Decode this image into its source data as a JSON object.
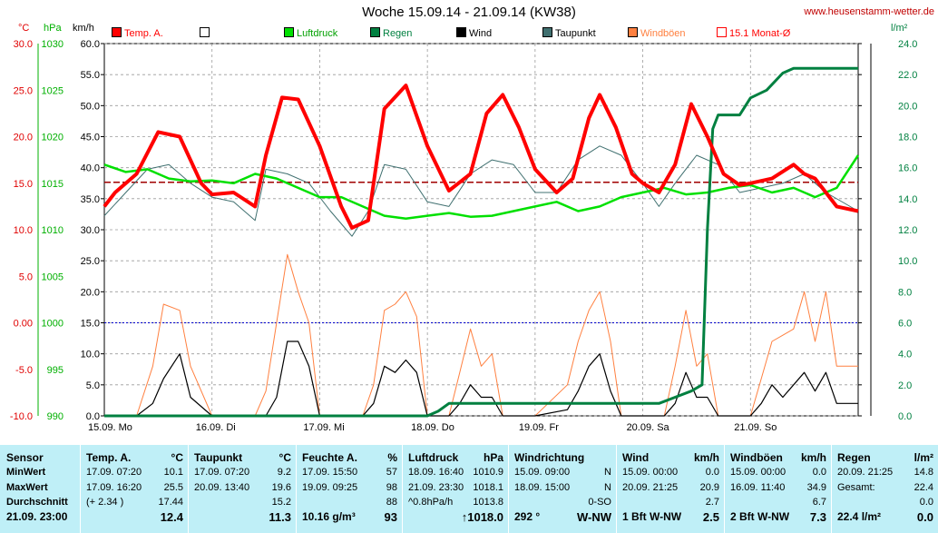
{
  "title": "Woche 15.09.14 - 21.09.14 (KW38)",
  "site": "www.heusenstamm-wetter.de",
  "units": {
    "temp": "°C",
    "pressure": "hPa",
    "wind": "km/h",
    "rain": "l/m²"
  },
  "colors": {
    "temp": "#ff0000",
    "pressure": "#00e000",
    "rain": "#008040",
    "wind": "#000000",
    "dew": "#407070",
    "gust": "#ff8040",
    "monat": "#ff0000",
    "zero": "#0000cc"
  },
  "legend": [
    {
      "label": "Temp. A.",
      "color": "#ff0000",
      "fill": true
    },
    {
      "label": "",
      "color": "#ffffff",
      "fill": false
    },
    {
      "label": "Luftdruck",
      "color": "#00e000",
      "fill": true
    },
    {
      "label": "Regen",
      "color": "#008040",
      "fill": true
    },
    {
      "label": "Wind",
      "color": "#000000",
      "fill": true
    },
    {
      "label": "Taupunkt",
      "color": "#407070",
      "fill": true
    },
    {
      "label": "Windböen",
      "color": "#ff8040",
      "fill": true
    },
    {
      "label": "15.1 Monat-Ø",
      "color": "#ff0000",
      "fill": false
    }
  ],
  "chart_data": {
    "type": "line",
    "title": "Woche 15.09.14 - 21.09.14 (KW38)",
    "x_labels": [
      "15.09.  Mo",
      "16.09.  Di",
      "17.09.  Mi",
      "18.09.  Do",
      "19.09.  Fr",
      "20.09.  Sa",
      "21.09.  So"
    ],
    "axes": {
      "temp": {
        "unit": "°C",
        "ylim": [
          -10,
          30
        ],
        "ticks": [
          "30.0",
          "25.0",
          "20.0",
          "15.0",
          "10.0",
          "5.0",
          "0.00",
          "-5.0",
          "-10.0"
        ]
      },
      "pressure": {
        "unit": "hPa",
        "ylim": [
          990,
          1030
        ],
        "ticks": [
          "1030",
          "1025",
          "1020",
          "1015",
          "1010",
          "1005",
          "1000",
          "995",
          "990"
        ]
      },
      "wind": {
        "unit": "km/h",
        "ylim": [
          0,
          60
        ],
        "ticks": [
          "60.0",
          "55.0",
          "50.0",
          "45.0",
          "40.0",
          "35.0",
          "30.0",
          "25.0",
          "20.0",
          "15.0",
          "10.0",
          "5.0",
          "0.0"
        ]
      },
      "rain": {
        "unit": "l/m²",
        "ylim": [
          0,
          24
        ],
        "ticks": [
          "24.0",
          "22.0",
          "20.0",
          "18.0",
          "16.0",
          "14.0",
          "12.0",
          "10.0",
          "8.0",
          "6.0",
          "4.0",
          "2.0",
          "0.0"
        ]
      }
    },
    "grid": true,
    "series": [
      {
        "name": "Temp. A.",
        "axis": "temp",
        "x": [
          0,
          0.1,
          0.3,
          0.5,
          0.7,
          0.9,
          1.0,
          1.2,
          1.4,
          1.5,
          1.65,
          1.8,
          2.0,
          2.2,
          2.3,
          2.45,
          2.6,
          2.8,
          3.0,
          3.2,
          3.4,
          3.55,
          3.7,
          3.85,
          4.0,
          4.2,
          4.35,
          4.5,
          4.6,
          4.75,
          4.9,
          5.0,
          5.15,
          5.3,
          5.45,
          5.6,
          5.75,
          5.9,
          6.0,
          6.2,
          6.4,
          6.5,
          6.6,
          6.8,
          7.0
        ],
        "values": [
          12.5,
          14.0,
          16.0,
          20.5,
          20.0,
          15.0,
          13.8,
          14.0,
          12.5,
          18.0,
          24.2,
          24.0,
          19.0,
          12.5,
          10.2,
          11.0,
          23.0,
          25.5,
          19.0,
          14.2,
          16.0,
          22.5,
          24.5,
          21.0,
          16.5,
          14.0,
          15.5,
          22.0,
          24.5,
          21.0,
          16.0,
          15.0,
          14.0,
          17.0,
          23.5,
          20.0,
          16.0,
          14.8,
          15.0,
          15.5,
          17.0,
          16.0,
          15.5,
          12.5,
          12.0
        ]
      },
      {
        "name": "Taupunkt",
        "axis": "temp",
        "x": [
          0,
          0.2,
          0.4,
          0.6,
          0.8,
          1.0,
          1.2,
          1.4,
          1.5,
          1.7,
          1.9,
          2.1,
          2.3,
          2.45,
          2.6,
          2.8,
          3.0,
          3.2,
          3.4,
          3.6,
          3.8,
          4.0,
          4.2,
          4.4,
          4.6,
          4.8,
          5.0,
          5.15,
          5.3,
          5.5,
          5.7,
          5.9,
          6.1,
          6.3,
          6.5,
          6.7,
          7.0
        ],
        "values": [
          11.5,
          14.0,
          16.5,
          17.0,
          15.0,
          13.5,
          13.0,
          11.0,
          16.5,
          16.0,
          15.0,
          12.0,
          9.3,
          12.0,
          17.0,
          16.5,
          13.0,
          12.5,
          16.0,
          17.5,
          17.0,
          14.0,
          14.0,
          17.5,
          19.0,
          18.0,
          15.0,
          12.5,
          15.0,
          18.0,
          17.0,
          14.0,
          14.5,
          15.0,
          16.0,
          14.0,
          12.0
        ]
      },
      {
        "name": "Luftdruck",
        "axis": "pressure",
        "x": [
          0,
          0.2,
          0.4,
          0.6,
          0.8,
          1.0,
          1.2,
          1.4,
          1.6,
          1.8,
          2.0,
          2.2,
          2.4,
          2.6,
          2.8,
          3.0,
          3.2,
          3.4,
          3.6,
          3.8,
          4.0,
          4.2,
          4.4,
          4.6,
          4.8,
          5.0,
          5.2,
          5.4,
          5.6,
          5.8,
          6.0,
          6.2,
          6.4,
          6.6,
          6.8,
          7.0
        ],
        "values": [
          1017,
          1016.2,
          1016.5,
          1015.5,
          1015.2,
          1015.3,
          1015.0,
          1016.0,
          1015.5,
          1014.5,
          1013.5,
          1013.5,
          1012.5,
          1011.5,
          1011.2,
          1011.5,
          1011.8,
          1011.4,
          1011.5,
          1012,
          1012.5,
          1013.0,
          1012.0,
          1012.5,
          1013.5,
          1014.0,
          1014.5,
          1013.8,
          1014.0,
          1014.5,
          1014.8,
          1014.0,
          1014.5,
          1013.5,
          1014.5,
          1018.0
        ]
      },
      {
        "name": "Wind",
        "axis": "wind",
        "x": [
          0,
          0.3,
          0.45,
          0.55,
          0.7,
          0.8,
          1.0,
          1.2,
          1.4,
          1.5,
          1.6,
          1.7,
          1.8,
          1.9,
          2.0,
          2.2,
          2.4,
          2.5,
          2.6,
          2.7,
          2.8,
          2.9,
          3.0,
          3.2,
          3.3,
          3.4,
          3.5,
          3.6,
          3.7,
          3.8,
          4.0,
          4.3,
          4.4,
          4.5,
          4.6,
          4.7,
          4.8,
          5.0,
          5.2,
          5.3,
          5.4,
          5.5,
          5.6,
          5.7,
          5.8,
          6.0,
          6.1,
          6.2,
          6.3,
          6.4,
          6.5,
          6.6,
          6.7,
          6.8,
          7.0
        ],
        "values": [
          0,
          0,
          2,
          6,
          10,
          3,
          0,
          0,
          0,
          0,
          3,
          12,
          12,
          8,
          0,
          0,
          0,
          2,
          8,
          7,
          9,
          7,
          0,
          0,
          2,
          5,
          3,
          3,
          0,
          0,
          0,
          1,
          4,
          8,
          10,
          4,
          0,
          0,
          0,
          2,
          7,
          3,
          3,
          0,
          0,
          0,
          2,
          5,
          3,
          5,
          7,
          4,
          7,
          2,
          2
        ]
      },
      {
        "name": "Windböen",
        "axis": "wind",
        "x": [
          0,
          0.3,
          0.45,
          0.55,
          0.7,
          0.8,
          1.0,
          1.2,
          1.4,
          1.5,
          1.6,
          1.7,
          1.8,
          1.9,
          2.0,
          2.2,
          2.4,
          2.5,
          2.6,
          2.7,
          2.8,
          2.9,
          3.0,
          3.2,
          3.3,
          3.4,
          3.5,
          3.6,
          3.7,
          3.8,
          4.0,
          4.3,
          4.4,
          4.5,
          4.6,
          4.7,
          4.8,
          5.0,
          5.2,
          5.3,
          5.4,
          5.5,
          5.6,
          5.7,
          5.8,
          6.0,
          6.1,
          6.2,
          6.3,
          6.4,
          6.5,
          6.6,
          6.7,
          6.8,
          7.0
        ],
        "values": [
          0,
          0,
          8,
          18,
          17,
          8,
          0,
          0,
          0,
          4,
          15,
          26,
          20,
          15,
          0,
          0,
          0,
          5,
          17,
          18,
          20,
          16,
          0,
          0,
          7,
          14,
          8,
          10,
          0,
          0,
          0,
          5,
          12,
          17,
          20,
          12,
          0,
          0,
          0,
          8,
          17,
          8,
          10,
          0,
          0,
          0,
          6,
          12,
          13,
          14,
          20,
          12,
          20,
          8,
          8
        ]
      },
      {
        "name": "Regen",
        "axis": "rain",
        "x": [
          0,
          3.0,
          3.1,
          3.2,
          3.4,
          3.6,
          3.8,
          4.0,
          4.2,
          4.4,
          4.6,
          4.8,
          5.0,
          5.15,
          5.3,
          5.45,
          5.55,
          5.6,
          5.65,
          5.7,
          5.8,
          5.9,
          6.0,
          6.15,
          6.3,
          6.4,
          6.5,
          6.7,
          7.0
        ],
        "values": [
          0,
          0,
          0.3,
          0.8,
          0.8,
          0.8,
          0.8,
          0.8,
          0.8,
          0.8,
          0.8,
          0.8,
          0.8,
          0.8,
          1.2,
          1.6,
          2.0,
          12.0,
          18.5,
          19.4,
          19.4,
          19.4,
          20.5,
          21.0,
          22.1,
          22.4,
          22.4,
          22.4,
          22.4
        ]
      },
      {
        "name": "15.1 Monat-Ø",
        "axis": "temp",
        "values": [
          15.1
        ]
      }
    ]
  },
  "table": {
    "row_labels": [
      "Sensor",
      "MinWert",
      "MaxWert",
      "Durchschnitt",
      "21.09. 23:00"
    ],
    "columns": [
      {
        "name": "Temp. A.",
        "unit": "°C",
        "rows": [
          [
            "17.09.  07:20",
            "10.1"
          ],
          [
            "17.09.  16:20",
            "25.5"
          ],
          [
            "(+ 2.34 )",
            "17.44"
          ],
          [
            "",
            "12.4"
          ]
        ]
      },
      {
        "name": "Taupunkt",
        "unit": "°C",
        "rows": [
          [
            "17.09.  07:20",
            "9.2"
          ],
          [
            "20.09.  13:40",
            "19.6"
          ],
          [
            "",
            "15.2"
          ],
          [
            "",
            "11.3"
          ]
        ]
      },
      {
        "name": "Feuchte A.",
        "unit": "%",
        "rows": [
          [
            "17.09.  15:50",
            "57"
          ],
          [
            "19.09.  09:25",
            "98"
          ],
          [
            "",
            "88"
          ],
          [
            "10.16 g/m³",
            "93"
          ]
        ]
      },
      {
        "name": "Luftdruck",
        "unit": "hPa",
        "rows": [
          [
            "18.09.  16:40",
            "1010.9"
          ],
          [
            "21.09.  23:30",
            "1018.1"
          ],
          [
            "^0.8hPa/h",
            "1013.8"
          ],
          [
            "",
            "↑1018.0"
          ]
        ]
      },
      {
        "name": "Windrichtung",
        "unit": "",
        "rows": [
          [
            "15.09.  09:00",
            "N"
          ],
          [
            "18.09.  15:00",
            "N"
          ],
          [
            "",
            "0-SO"
          ],
          [
            "292 °",
            "W-NW"
          ]
        ]
      },
      {
        "name": "Wind",
        "unit": "km/h",
        "rows": [
          [
            "15.09.  00:00",
            "0.0"
          ],
          [
            "20.09.  21:25",
            "20.9"
          ],
          [
            "",
            "2.7"
          ],
          [
            "1 Bft W-NW",
            "2.5"
          ]
        ]
      },
      {
        "name": "Windböen",
        "unit": "km/h",
        "rows": [
          [
            "15.09.  00:00",
            "0.0"
          ],
          [
            "16.09.  11:40",
            "34.9"
          ],
          [
            "",
            "6.7"
          ],
          [
            "2 Bft W-NW",
            "7.3"
          ]
        ]
      },
      {
        "name": "Regen",
        "unit": "l/m²",
        "rows": [
          [
            "20.09.  21:25",
            "14.8"
          ],
          [
            "Gesamt:",
            "22.4"
          ],
          [
            "",
            "0.0"
          ],
          [
            "22.4 l/m²",
            "0.0"
          ]
        ]
      }
    ]
  }
}
